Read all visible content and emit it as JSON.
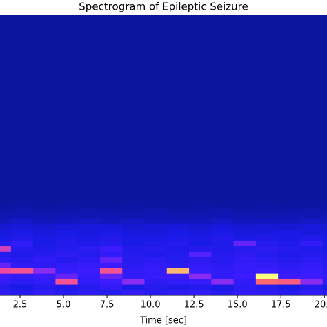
{
  "chart_data": {
    "type": "spectrogram",
    "title": "Spectrogram of Epileptic Seizure",
    "x_label": "Time [sec]",
    "xlim": [
      1.35,
      20.15
    ],
    "xticks": [
      {
        "value": 2.5,
        "label": "2.5"
      },
      {
        "value": 5.0,
        "label": "5.0"
      },
      {
        "value": 7.5,
        "label": "7.5"
      },
      {
        "value": 10.0,
        "label": "10.0"
      },
      {
        "value": 12.5,
        "label": "12.5"
      },
      {
        "value": 15.0,
        "label": "15.0"
      },
      {
        "value": 17.5,
        "label": "17.5"
      },
      {
        "value": 20.0,
        "label": "20.0"
      }
    ],
    "xbins": [
      0.7,
      1.98,
      3.26,
      4.54,
      5.82,
      7.1,
      8.38,
      9.66,
      10.94,
      12.22,
      13.5,
      14.78,
      16.06,
      17.34,
      18.62,
      19.9,
      21.18
    ],
    "ybins": [
      0,
      1,
      2,
      3,
      4,
      5,
      6,
      7,
      8,
      9,
      10,
      11,
      12,
      13,
      14,
      15,
      16,
      17,
      51
    ],
    "colorscale": [
      [
        0.1,
        "#0a1496"
      ],
      [
        0.3,
        "#1a1ae6"
      ],
      [
        0.45,
        "#3c1cff"
      ],
      [
        0.55,
        "#8a2cf0"
      ],
      [
        0.7,
        "#f04aa0"
      ],
      [
        0.8,
        "#ff7060"
      ],
      [
        0.9,
        "#ffff80"
      ]
    ],
    "z": [
      [
        0.38,
        0.35,
        0.4,
        0.35,
        0.38,
        0.35,
        0.4,
        0.35,
        0.38,
        0.4,
        0.35,
        0.4,
        0.38,
        0.35,
        0.4,
        0.35
      ],
      [
        0.35,
        0.3,
        0.35,
        0.32,
        0.35,
        0.4,
        0.3,
        0.35,
        0.32,
        0.35,
        0.3,
        0.38,
        0.35,
        0.3,
        0.35,
        0.3
      ],
      [
        0.4,
        0.38,
        0.4,
        0.72,
        0.4,
        0.45,
        0.55,
        0.38,
        0.4,
        0.42,
        0.55,
        0.4,
        0.78,
        0.75,
        0.55,
        0.38
      ],
      [
        0.45,
        0.4,
        0.45,
        0.5,
        0.42,
        0.5,
        0.4,
        0.42,
        0.45,
        0.55,
        0.4,
        0.45,
        0.9,
        0.45,
        0.45,
        0.4
      ],
      [
        0.7,
        0.72,
        0.55,
        0.42,
        0.45,
        0.72,
        0.4,
        0.42,
        0.85,
        0.42,
        0.4,
        0.42,
        0.45,
        0.4,
        0.42,
        0.38
      ],
      [
        0.5,
        0.4,
        0.38,
        0.4,
        0.42,
        0.45,
        0.38,
        0.4,
        0.38,
        0.4,
        0.38,
        0.42,
        0.4,
        0.38,
        0.4,
        0.35
      ],
      [
        0.38,
        0.35,
        0.4,
        0.35,
        0.38,
        0.5,
        0.35,
        0.38,
        0.35,
        0.38,
        0.35,
        0.4,
        0.38,
        0.35,
        0.38,
        0.35
      ],
      [
        0.35,
        0.32,
        0.35,
        0.38,
        0.35,
        0.4,
        0.35,
        0.32,
        0.35,
        0.48,
        0.35,
        0.38,
        0.35,
        0.32,
        0.35,
        0.32
      ],
      [
        0.65,
        0.35,
        0.32,
        0.35,
        0.38,
        0.45,
        0.33,
        0.35,
        0.32,
        0.35,
        0.33,
        0.35,
        0.38,
        0.35,
        0.32,
        0.3
      ],
      [
        0.35,
        0.4,
        0.3,
        0.35,
        0.32,
        0.35,
        0.3,
        0.32,
        0.35,
        0.3,
        0.32,
        0.5,
        0.35,
        0.33,
        0.4,
        0.3
      ],
      [
        0.3,
        0.33,
        0.3,
        0.32,
        0.3,
        0.33,
        0.3,
        0.3,
        0.32,
        0.3,
        0.33,
        0.3,
        0.32,
        0.3,
        0.33,
        0.3
      ],
      [
        0.28,
        0.3,
        0.27,
        0.3,
        0.28,
        0.3,
        0.28,
        0.27,
        0.3,
        0.28,
        0.3,
        0.27,
        0.28,
        0.3,
        0.27,
        0.28
      ],
      [
        0.25,
        0.27,
        0.25,
        0.26,
        0.27,
        0.28,
        0.25,
        0.26,
        0.27,
        0.25,
        0.28,
        0.25,
        0.26,
        0.25,
        0.27,
        0.25
      ],
      [
        0.2,
        0.22,
        0.2,
        0.21,
        0.22,
        0.2,
        0.22,
        0.2,
        0.21,
        0.2,
        0.22,
        0.2,
        0.21,
        0.2,
        0.22,
        0.2
      ],
      [
        0.17,
        0.18,
        0.17,
        0.18,
        0.17,
        0.18,
        0.17,
        0.18,
        0.17,
        0.17,
        0.18,
        0.17,
        0.17,
        0.18,
        0.17,
        0.17
      ],
      [
        0.15,
        0.16,
        0.15,
        0.15,
        0.16,
        0.15,
        0.15,
        0.16,
        0.15,
        0.15,
        0.16,
        0.15,
        0.15,
        0.15,
        0.16,
        0.15
      ],
      [
        0.13,
        0.14,
        0.13,
        0.14,
        0.13,
        0.13,
        0.14,
        0.13,
        0.13,
        0.14,
        0.13,
        0.13,
        0.14,
        0.13,
        0.13,
        0.14
      ],
      [
        0.12,
        0.12,
        0.12,
        0.12,
        0.12,
        0.12,
        0.12,
        0.12,
        0.12,
        0.12,
        0.12,
        0.12,
        0.12,
        0.12,
        0.12,
        0.12
      ]
    ]
  }
}
